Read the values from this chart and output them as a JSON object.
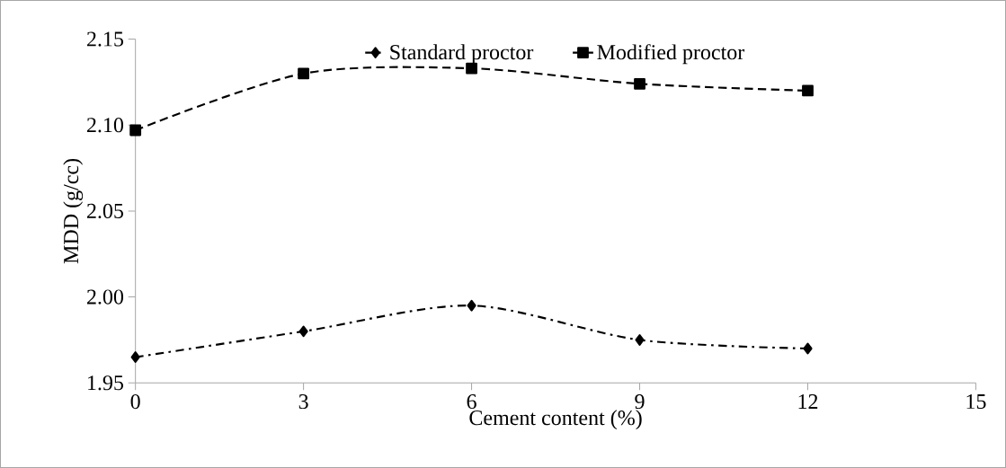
{
  "chart_data": {
    "type": "line",
    "xlabel": "Cement content (%)",
    "ylabel": "MDD (g/cc)",
    "x": [
      0,
      3,
      6,
      9,
      12
    ],
    "series": [
      {
        "name": "Standard proctor",
        "color": "#000000",
        "values": [
          1.965,
          1.98,
          1.995,
          1.975,
          1.97
        ],
        "marker": "diamond",
        "line_style": "dashdot"
      },
      {
        "name": "Modified proctor",
        "color": "#000000",
        "values": [
          2.097,
          2.13,
          2.133,
          2.124,
          2.12
        ],
        "marker": "square",
        "line_style": "dashed"
      }
    ],
    "xlim": [
      0,
      15
    ],
    "xticks": [
      0,
      3,
      6,
      9,
      12,
      15
    ],
    "ylim": [
      1.95,
      2.15
    ],
    "yticks": [
      1.95,
      {
        "value": 2.0,
        "label": "2.00"
      },
      2.05,
      {
        "value": 2.1,
        "label": "2.10"
      },
      2.15
    ],
    "grid": false,
    "legend": "top"
  }
}
